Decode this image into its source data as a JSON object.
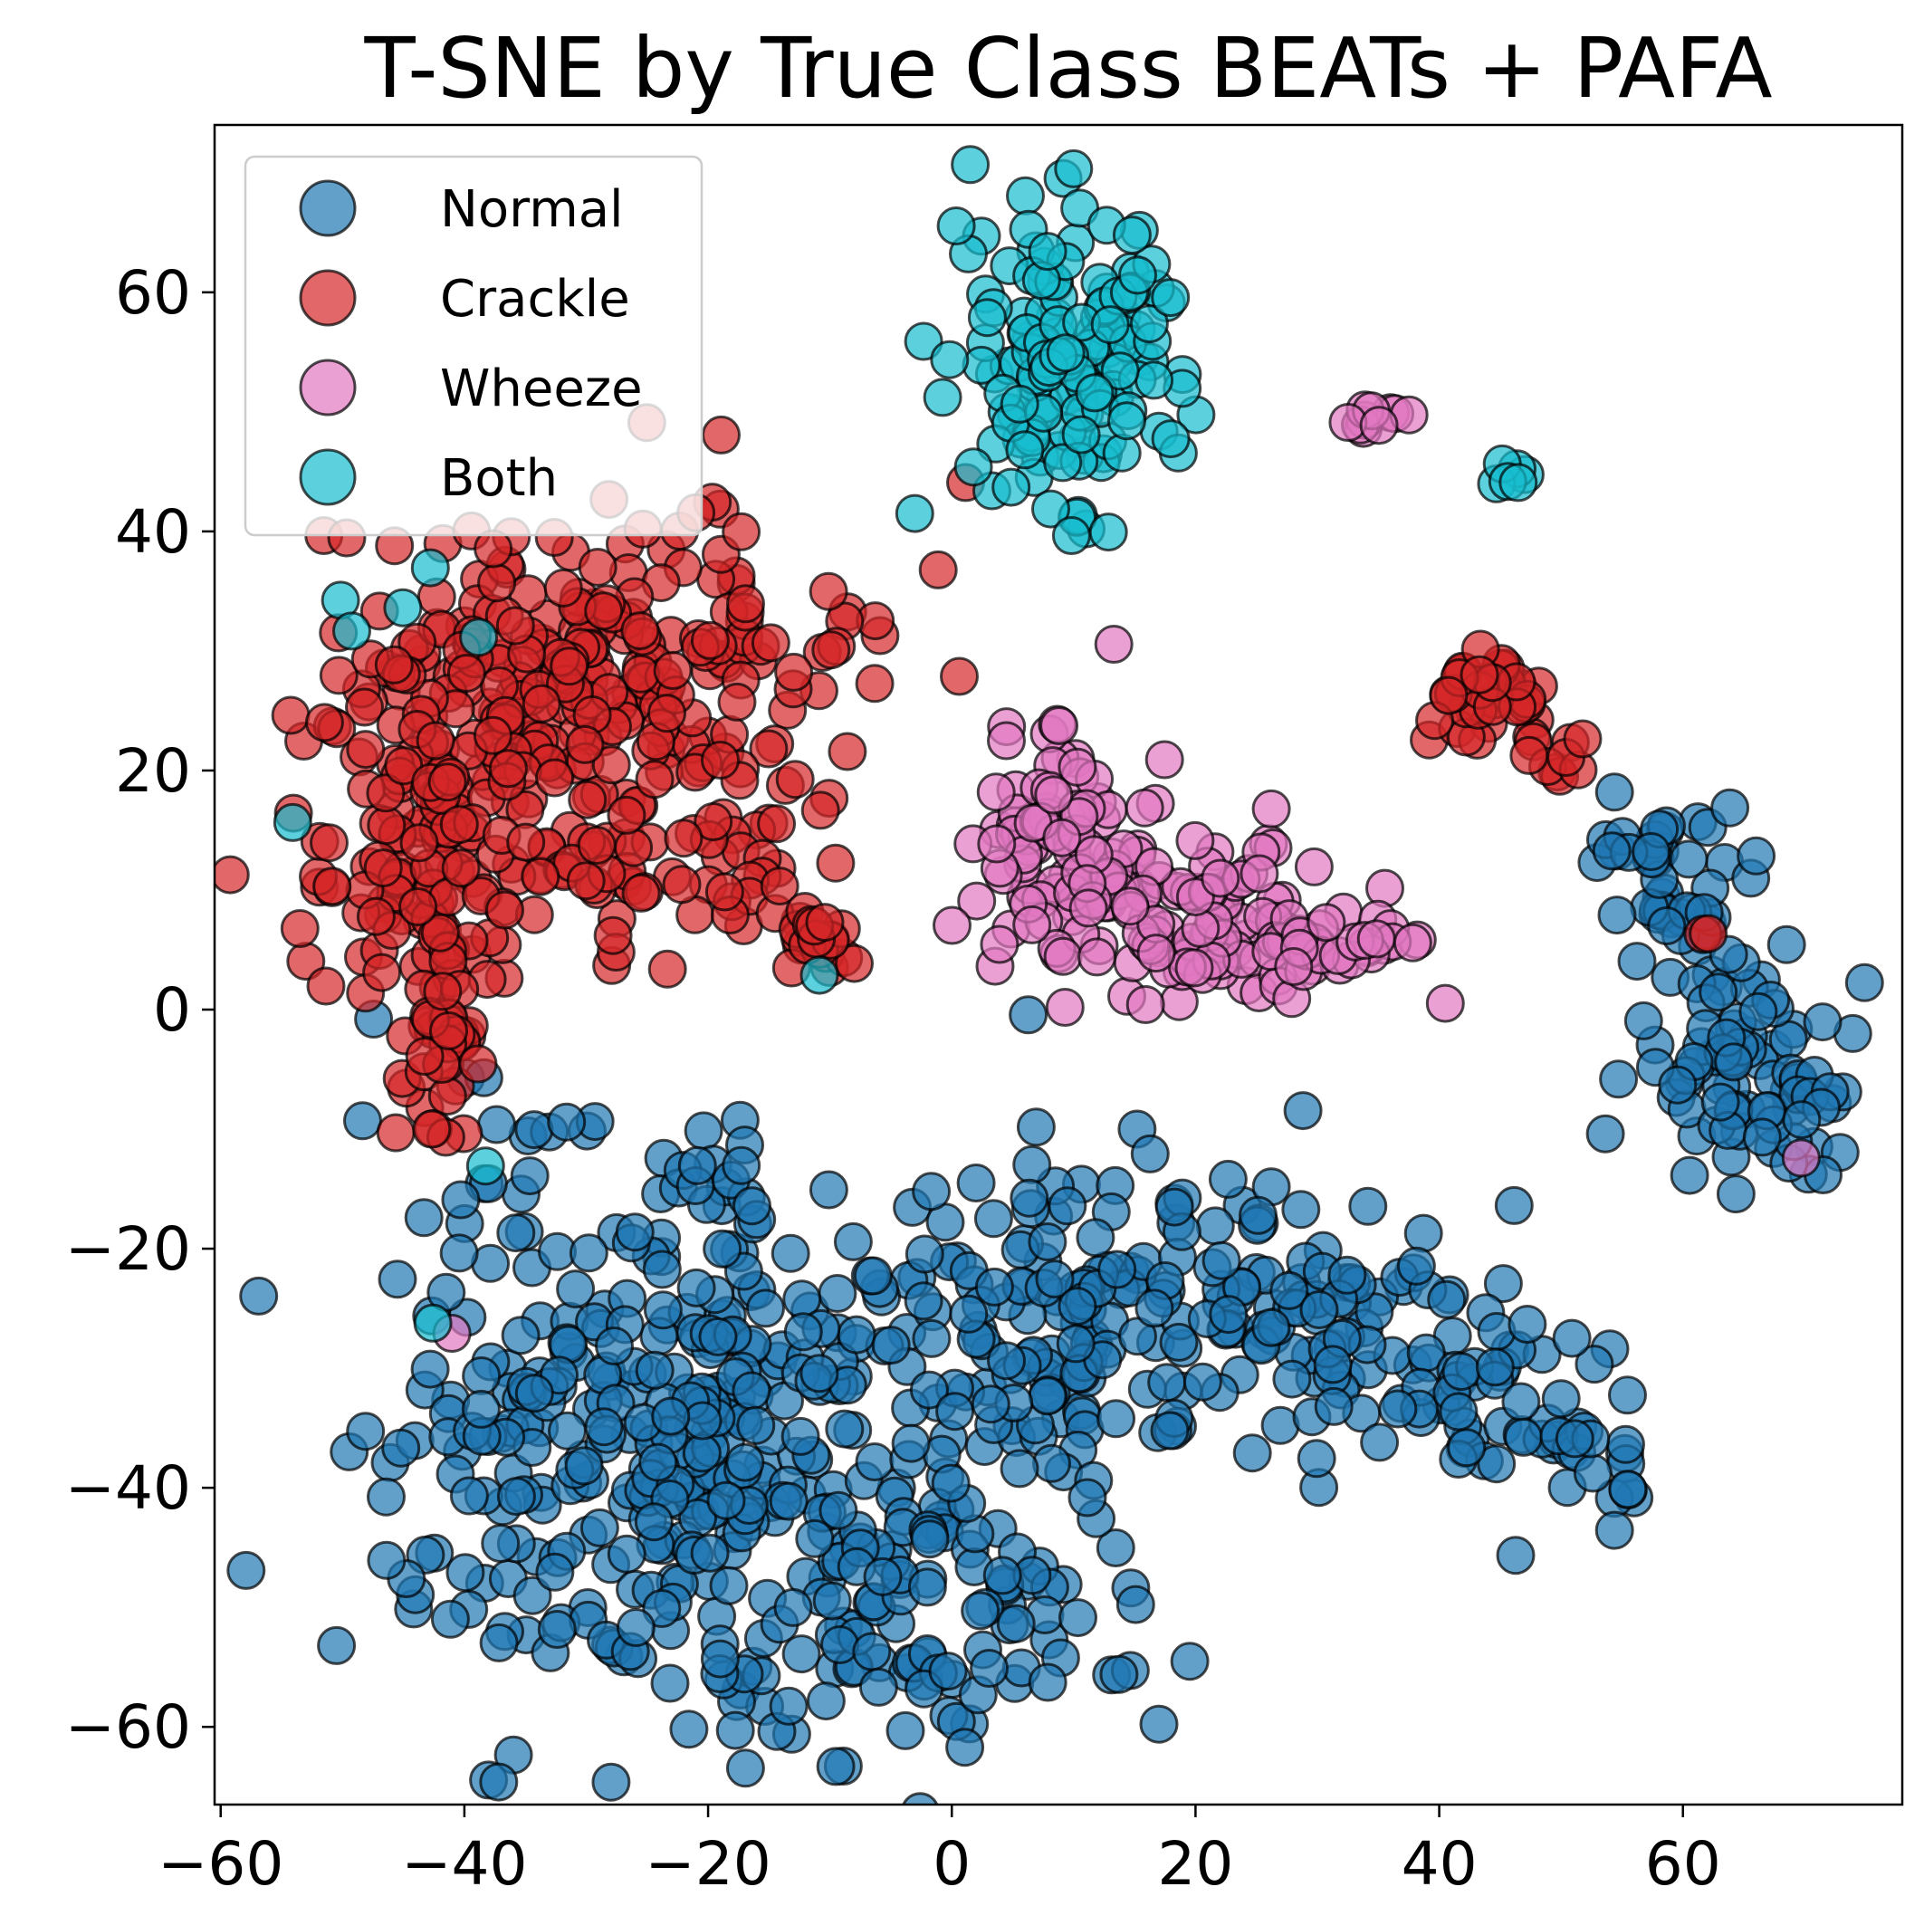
{
  "chart_data": {
    "type": "scatter",
    "title": "T-SNE by True Class BEATs + PAFA",
    "xlabel": "",
    "ylabel": "",
    "xlim": [
      -60.5,
      78
    ],
    "ylim": [
      -66.5,
      74
    ],
    "x_ticks": [
      -60,
      -40,
      -20,
      0,
      20,
      40,
      60
    ],
    "y_ticks": [
      -60,
      -40,
      -20,
      0,
      20,
      40,
      60
    ],
    "x_tick_labels": [
      "−60",
      "−40",
      "−20",
      "0",
      "20",
      "40",
      "60"
    ],
    "y_tick_labels": [
      "−60",
      "−40",
      "−20",
      "0",
      "20",
      "40",
      "60"
    ],
    "grid": false,
    "legend_position": "top-left",
    "series": [
      {
        "name": "Normal",
        "color": "#1f77b4",
        "clusters": [
          {
            "center": [
              -25,
              -35
            ],
            "spread": [
              13,
              11
            ],
            "count": 330
          },
          {
            "center": [
              -5,
              -50
            ],
            "spread": [
              9,
              6
            ],
            "count": 110
          },
          {
            "center": [
              12,
              -27
            ],
            "spread": [
              11,
              7
            ],
            "count": 190
          },
          {
            "center": [
              33,
              -28
            ],
            "spread": [
              6,
              5
            ],
            "count": 60
          },
          {
            "center": [
              45,
              -32
            ],
            "spread": [
              5,
              3
            ],
            "count": 35
          },
          {
            "center": [
              53,
              -39
            ],
            "spread": [
              3,
              2.5
            ],
            "count": 18
          },
          {
            "center": [
              -19,
              -15
            ],
            "spread": [
              2.5,
              2
            ],
            "count": 12
          },
          {
            "center": [
              -38,
              -12
            ],
            "spread": [
              2,
              3
            ],
            "count": 8
          },
          {
            "center": [
              60,
              8
            ],
            "spread": [
              3,
              5
            ],
            "count": 40
          },
          {
            "center": [
              64,
              -5
            ],
            "spread": [
              4,
              5
            ],
            "count": 60
          },
          {
            "center": [
              70,
              -8
            ],
            "spread": [
              2,
              3
            ],
            "count": 20
          },
          {
            "center": [
              56,
              14
            ],
            "spread": [
              1.5,
              2
            ],
            "count": 12
          },
          {
            "center": [
              14,
              -55
            ],
            "spread": [
              0.6,
              0.6
            ],
            "count": 3
          },
          {
            "center": [
              6.5,
              -0.5
            ],
            "spread": [
              0.2,
              0.2
            ],
            "count": 1
          }
        ]
      },
      {
        "name": "Crackle",
        "color": "#d62728",
        "clusters": [
          {
            "center": [
              -28,
              28
            ],
            "spread": [
              11,
              7
            ],
            "count": 240
          },
          {
            "center": [
              -43,
              12
            ],
            "spread": [
              5,
              9
            ],
            "count": 130
          },
          {
            "center": [
              -26,
              12
            ],
            "spread": [
              8,
              4
            ],
            "count": 70
          },
          {
            "center": [
              -42,
              -4
            ],
            "spread": [
              1.5,
              4
            ],
            "count": 25
          },
          {
            "center": [
              -11,
              6
            ],
            "spread": [
              1.5,
              1.5
            ],
            "count": 18
          },
          {
            "center": [
              44,
              26
            ],
            "spread": [
              2.5,
              1.8
            ],
            "count": 40
          },
          {
            "center": [
              50,
              21
            ],
            "spread": [
              1.5,
              1
            ],
            "count": 8
          },
          {
            "center": [
              62,
              7
            ],
            "spread": [
              0.6,
              0.6
            ],
            "count": 2
          }
        ]
      },
      {
        "name": "Wheeze",
        "color": "#e377c2",
        "clusters": [
          {
            "center": [
              10,
              14
            ],
            "spread": [
              4,
              5
            ],
            "count": 80
          },
          {
            "center": [
              20,
              7
            ],
            "spread": [
              7,
              3.5
            ],
            "count": 110
          },
          {
            "center": [
              32,
              5
            ],
            "spread": [
              3,
              1.2
            ],
            "count": 25
          },
          {
            "center": [
              34,
              49.5
            ],
            "spread": [
              1.2,
              0.6
            ],
            "count": 10
          },
          {
            "center": [
              69.5,
              -12
            ],
            "spread": [
              0.2,
              0.2
            ],
            "count": 1
          },
          {
            "center": [
              -41,
              -27
            ],
            "spread": [
              0.2,
              0.2
            ],
            "count": 1
          }
        ]
      },
      {
        "name": "Both",
        "color": "#17becf",
        "clusters": [
          {
            "center": [
              10,
              55
            ],
            "spread": [
              4.5,
              6
            ],
            "count": 150
          },
          {
            "center": [
              45.5,
              44.8
            ],
            "spread": [
              0.6,
              0.6
            ],
            "count": 6
          },
          {
            "center": [
              -54,
              15
            ],
            "spread": [
              0.2,
              0.2
            ],
            "count": 1
          },
          {
            "center": [
              -50,
              34
            ],
            "spread": [
              0.3,
              0.3
            ],
            "count": 1
          },
          {
            "center": [
              -49,
              32
            ],
            "spread": [
              0.3,
              0.3
            ],
            "count": 1
          },
          {
            "center": [
              -45,
              34
            ],
            "spread": [
              0.3,
              0.3
            ],
            "count": 1
          },
          {
            "center": [
              -43,
              36.5
            ],
            "spread": [
              0.3,
              0.3
            ],
            "count": 1
          },
          {
            "center": [
              -38.5,
              31
            ],
            "spread": [
              0.3,
              0.3
            ],
            "count": 1
          },
          {
            "center": [
              -11,
              3
            ],
            "spread": [
              0.2,
              0.2
            ],
            "count": 1
          },
          {
            "center": [
              -38,
              -13
            ],
            "spread": [
              0.2,
              0.2
            ],
            "count": 1
          },
          {
            "center": [
              -42.5,
              -26.5
            ],
            "spread": [
              0.2,
              0.2
            ],
            "count": 1
          }
        ]
      }
    ]
  }
}
